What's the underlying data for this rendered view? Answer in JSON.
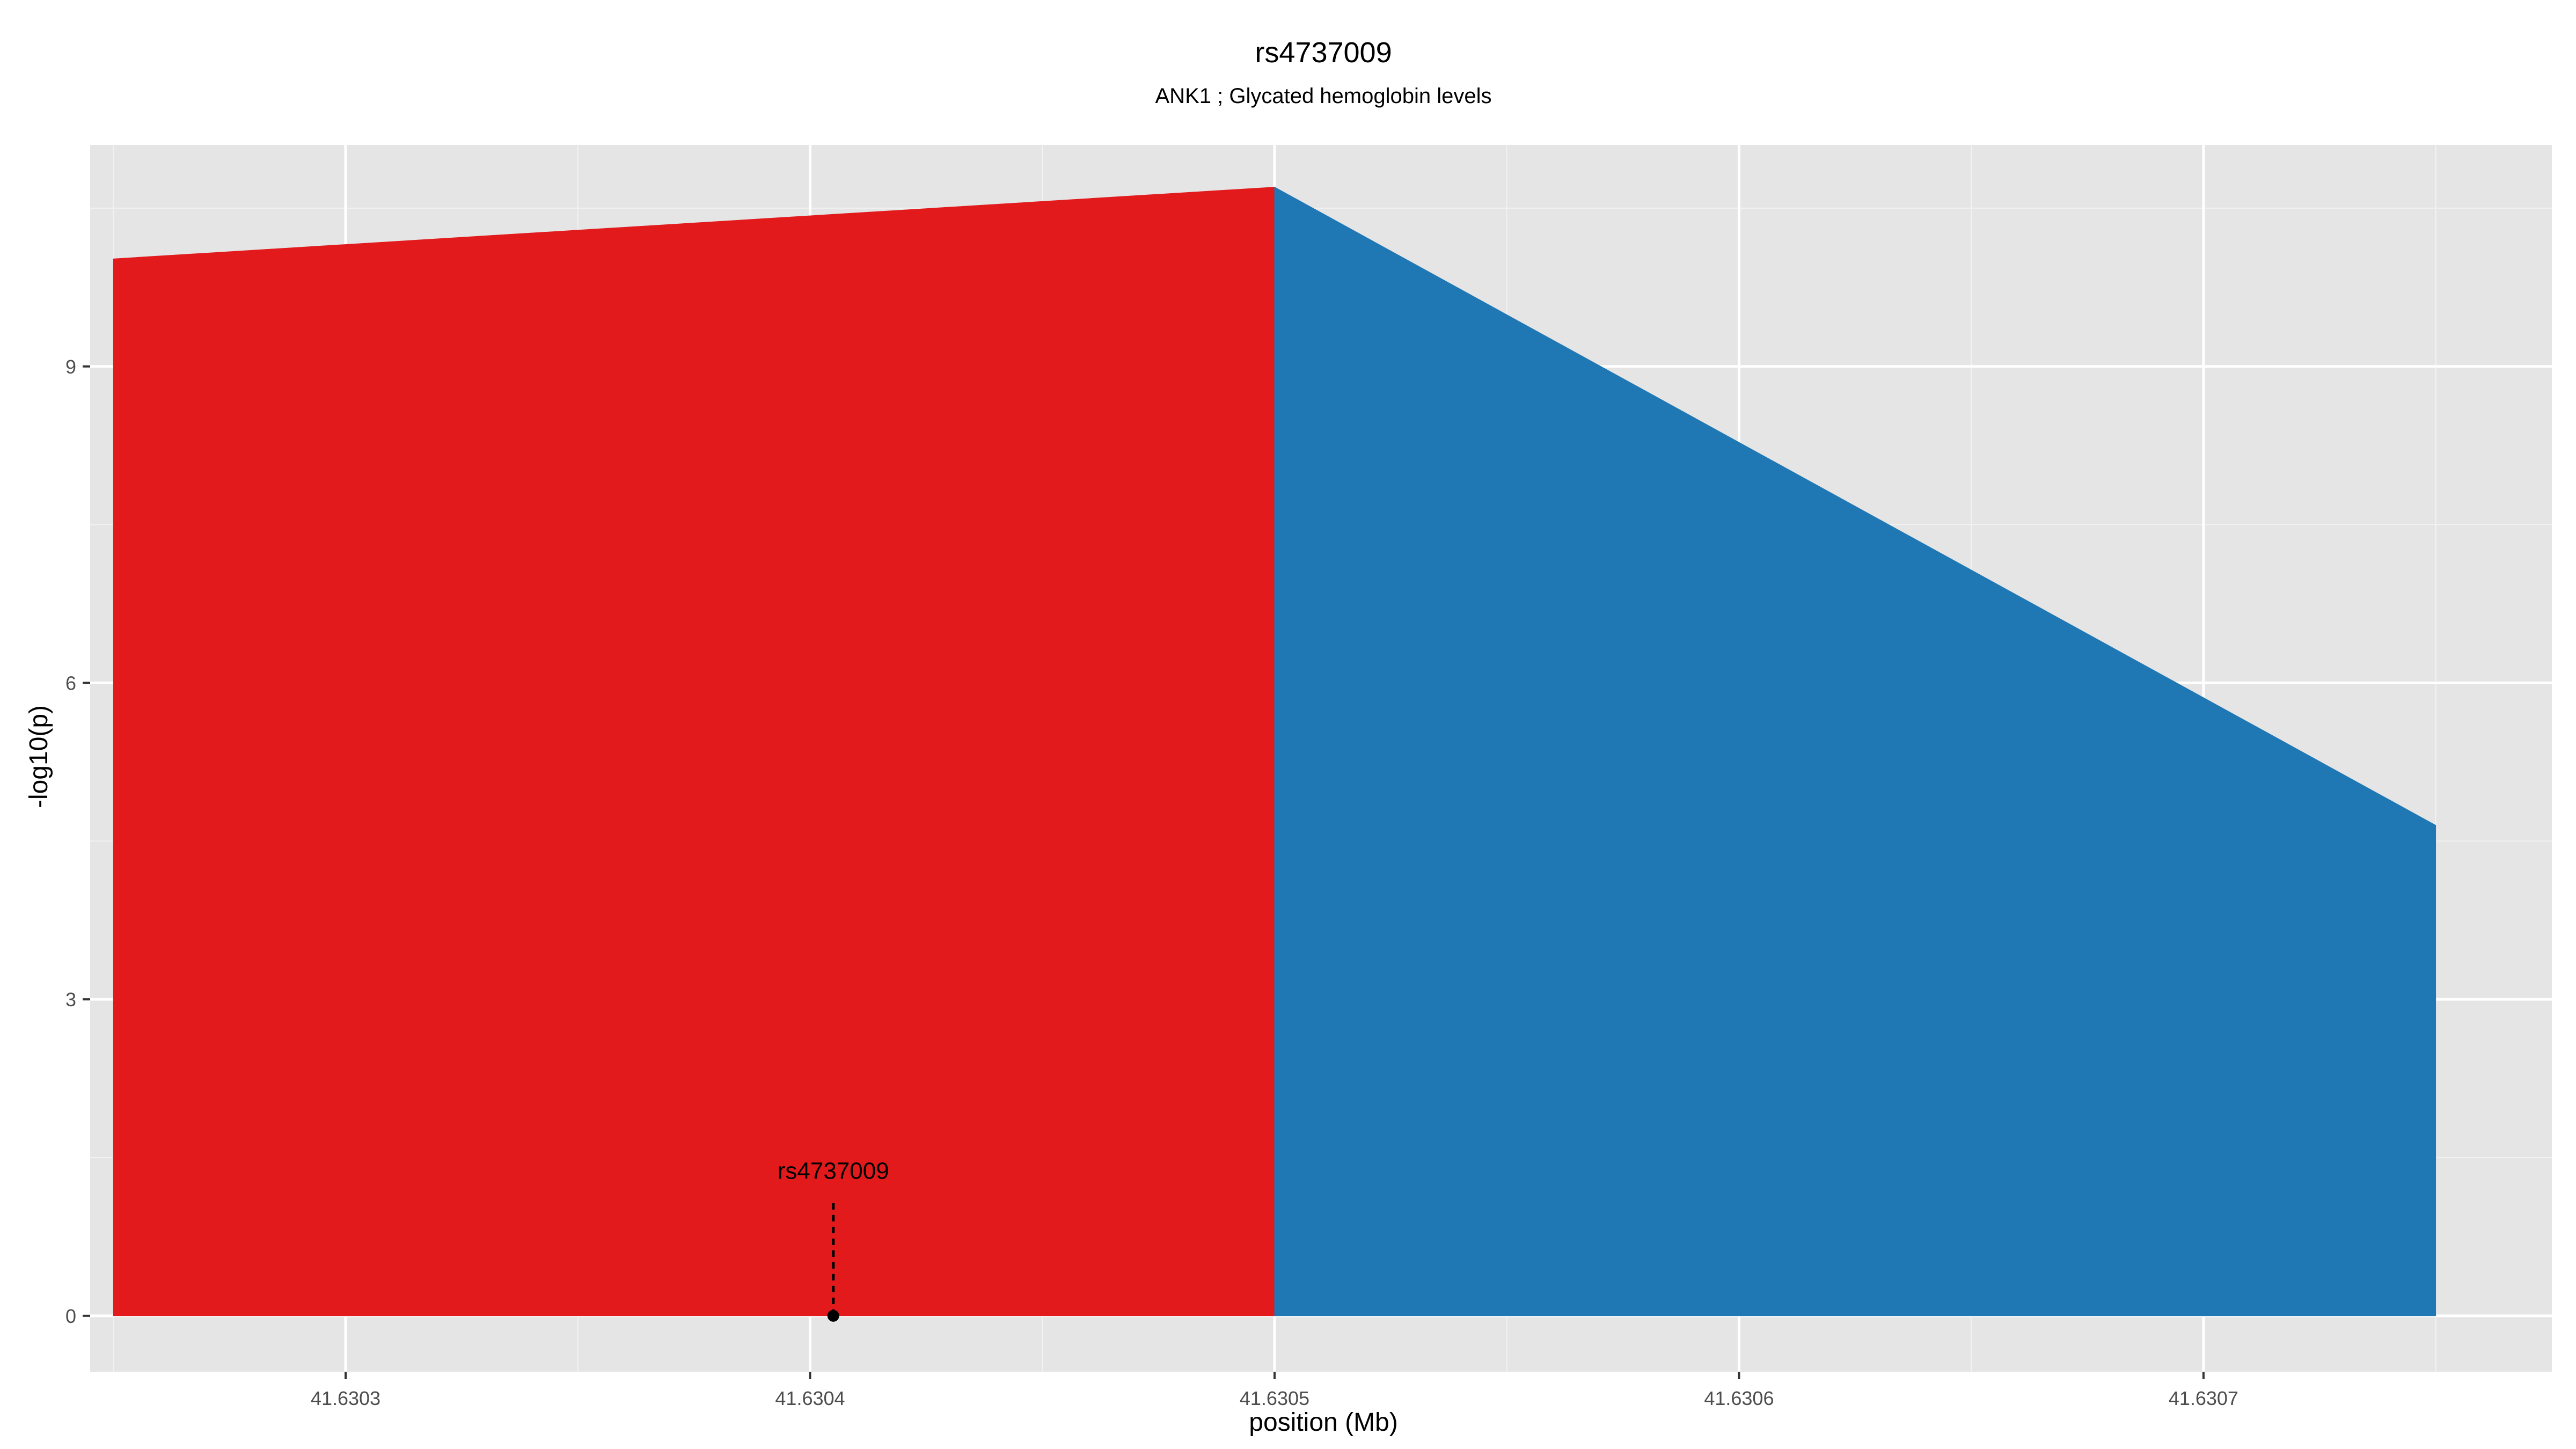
{
  "chart_data": {
    "type": "area",
    "title": "rs4737009",
    "subtitle": "ANK1 ; Glycated hemoglobin levels",
    "xlabel": "position (Mb)",
    "ylabel": "-log10(p)",
    "xlim": [
      41.630245,
      41.630775
    ],
    "ylim": [
      -0.53,
      11.1
    ],
    "x_ticks": [
      41.6303,
      41.6304,
      41.6305,
      41.6306,
      41.6307
    ],
    "x_tick_labels": [
      "41.6303",
      "41.6304",
      "41.6305",
      "41.6306",
      "41.6307"
    ],
    "y_ticks": [
      0,
      3,
      6,
      9
    ],
    "y_tick_labels": [
      "0",
      "3",
      "6",
      "9"
    ],
    "grid": true,
    "legend": "none",
    "series": [
      {
        "color": "#e31a1c",
        "points": [
          [
            41.63025,
            0
          ],
          [
            41.63025,
            10.02
          ],
          [
            41.6305,
            10.7
          ],
          [
            41.6305,
            0
          ]
        ]
      },
      {
        "color": "#1f78b4",
        "points": [
          [
            41.6305,
            0
          ],
          [
            41.6305,
            10.7
          ],
          [
            41.63075,
            4.65
          ],
          [
            41.63075,
            0
          ]
        ]
      }
    ],
    "annotations": [
      {
        "label": "rs4737009",
        "x": 41.630405,
        "y": 0,
        "line_top": 1.07,
        "label_y": 1.3
      }
    ]
  }
}
